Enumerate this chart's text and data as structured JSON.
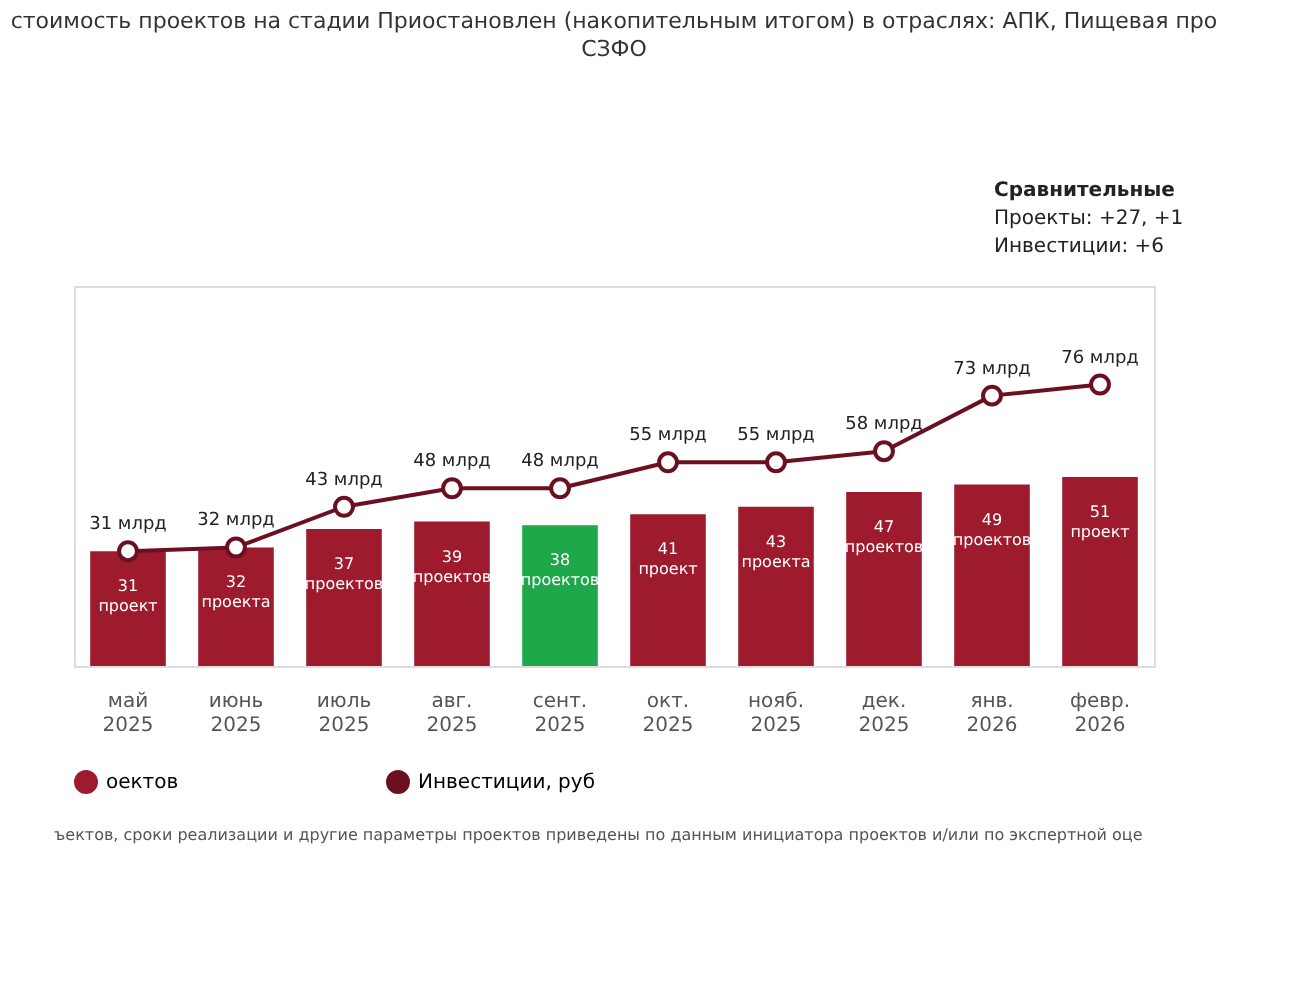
{
  "chart_data": {
    "type": "bar",
    "title": "стоимость проектов на стадии Приостановлен (накопительным итогом) в отраслях: АПК, Пищевая про",
    "subtitle": "СЗФО",
    "categories": [
      "май 2025",
      "июнь 2025",
      "июль 2025",
      "авг. 2025",
      "сент. 2025",
      "окт. 2025",
      "нояб. 2025",
      "дек. 2025",
      "янв. 2026",
      "февр. 2026"
    ],
    "series": [
      {
        "name": "оектов",
        "color": "#9e1b2e",
        "colors": [
          "#9e1b2e",
          "#9e1b2e",
          "#9e1b2e",
          "#9e1b2e",
          "#1ea84a",
          "#9e1b2e",
          "#9e1b2e",
          "#9e1b2e",
          "#9e1b2e",
          "#9e1b2e"
        ],
        "values": [
          31,
          32,
          37,
          39,
          38,
          41,
          43,
          47,
          49,
          51
        ],
        "value_labels": [
          "31 проект",
          "32 проекта",
          "37 проектов",
          "39 проектов",
          "38 проектов",
          "41 проект",
          "43 проекта",
          "47 проектов",
          "49 проектов",
          "51 проект"
        ]
      },
      {
        "name": "Инвестиции, руб",
        "type": "line",
        "color": "#6b1020",
        "marker": "circle",
        "values": [
          31,
          32,
          43,
          48,
          48,
          55,
          55,
          58,
          73,
          76
        ],
        "value_labels": [
          "31 млрд",
          "32 млрд",
          "43 млрд",
          "48 млрд",
          "48 млрд",
          "55 млрд",
          "55 млрд",
          "58 млрд",
          "73 млрд",
          "76 млрд"
        ]
      }
    ],
    "legend": "bottom left",
    "annotations": [
      "Сравнительные",
      "Проекты: +27, +1",
      "Инвестиции: +6",
      "ъектов, сроки реализации и другие параметры проектов приведены по данным инициатора проектов и/или по экспертной оце"
    ]
  }
}
